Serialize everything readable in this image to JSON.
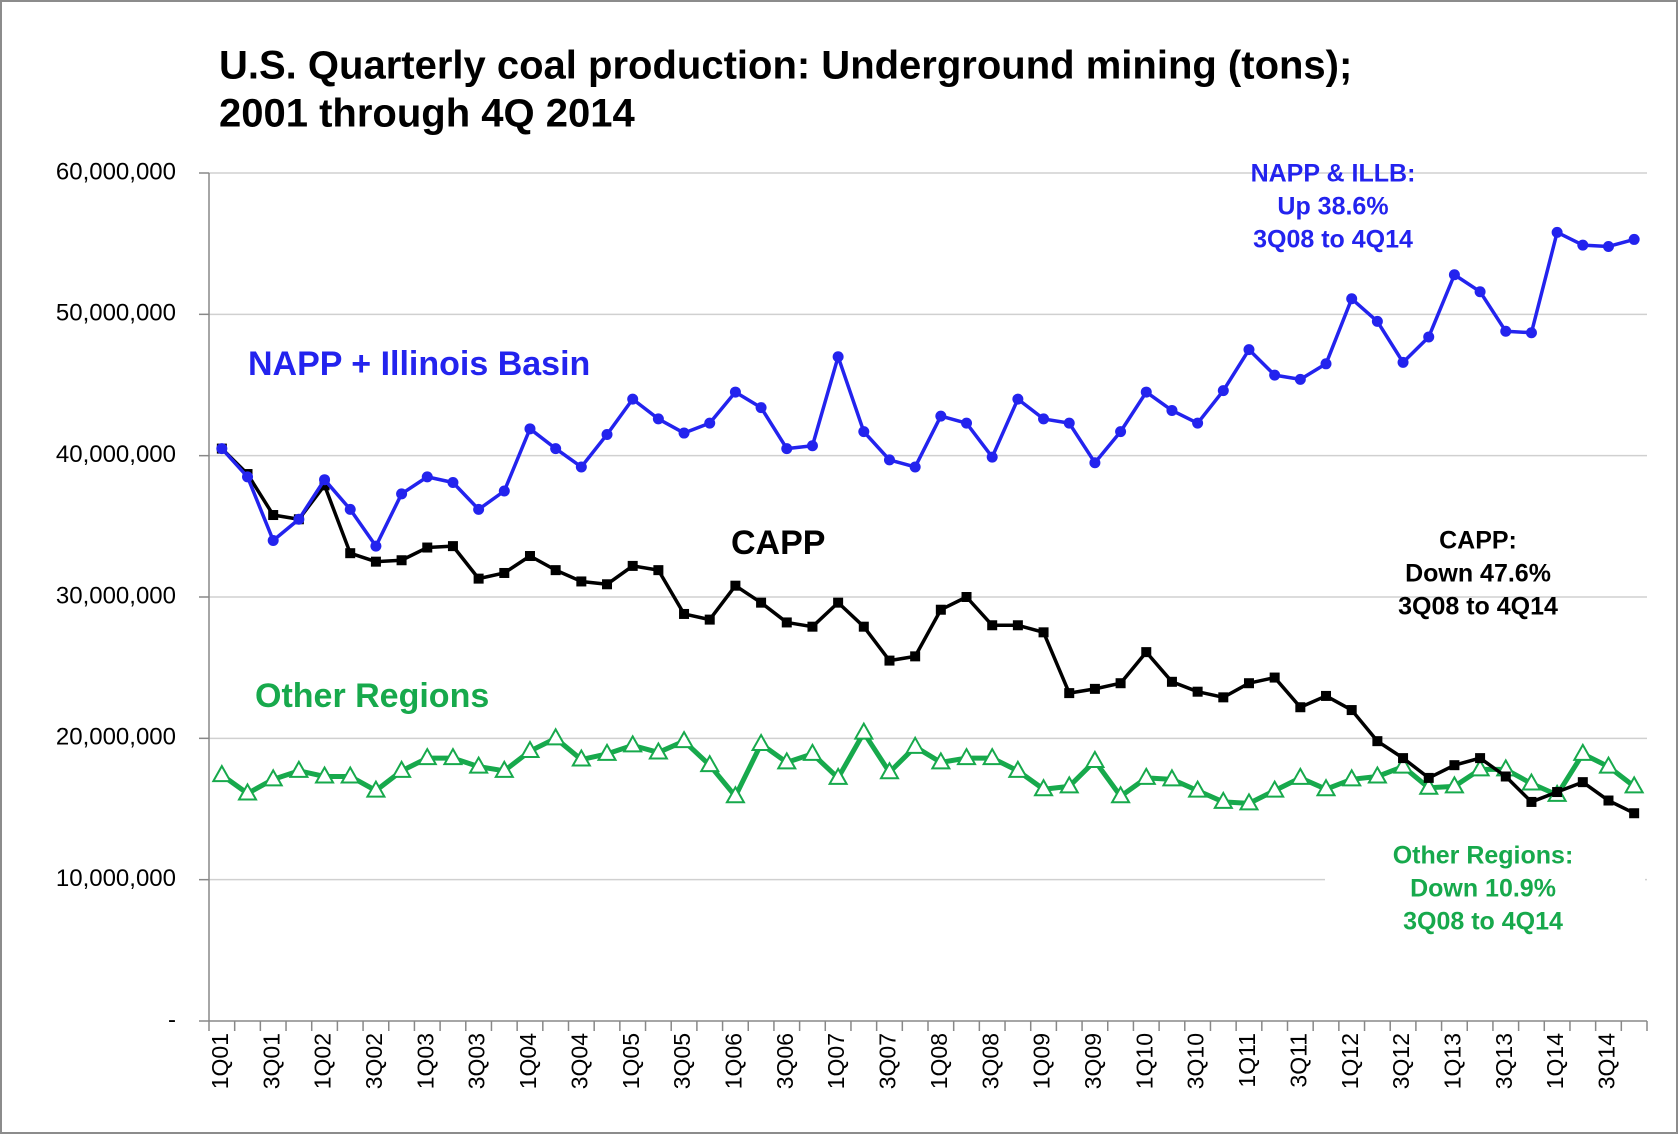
{
  "chart_data": {
    "type": "line",
    "title": [
      "U.S. Quarterly coal production: Underground mining (tons);",
      "2001 through 4Q 2014"
    ],
    "categories": [
      "1Q01",
      null,
      "3Q01",
      null,
      "1Q02",
      null,
      "3Q02",
      null,
      "1Q03",
      null,
      "3Q03",
      null,
      "1Q04",
      null,
      "3Q04",
      null,
      "1Q05",
      null,
      "3Q05",
      null,
      "1Q06",
      null,
      "3Q06",
      null,
      "1Q07",
      null,
      "3Q07",
      null,
      "1Q08",
      null,
      "3Q08",
      null,
      "1Q09",
      null,
      "3Q09",
      null,
      "1Q10",
      null,
      "3Q10",
      null,
      "1Q11",
      null,
      "3Q11",
      null,
      "1Q12",
      null,
      "3Q12",
      null,
      "1Q13",
      null,
      "3Q13",
      null,
      "1Q14",
      null,
      "3Q14",
      null
    ],
    "series": [
      {
        "name": "NAPP + Illinois Basin",
        "color": "#2323ee",
        "marker": "circle",
        "values": [
          40500000,
          38500000,
          34000000,
          35500000,
          38300000,
          36200000,
          33600000,
          37300000,
          38500000,
          38100000,
          36200000,
          37500000,
          41900000,
          40500000,
          39200000,
          41500000,
          44000000,
          42600000,
          41600000,
          42300000,
          44500000,
          43400000,
          40500000,
          40700000,
          47000000,
          41700000,
          39700000,
          39200000,
          42800000,
          42300000,
          39900000,
          44000000,
          42600000,
          42300000,
          39500000,
          41700000,
          44500000,
          43200000,
          42300000,
          44600000,
          47500000,
          45700000,
          45400000,
          46500000,
          51100000,
          49500000,
          46600000,
          48400000,
          52800000,
          51600000,
          48800000,
          48700000,
          55800000,
          54900000,
          54800000,
          55300000
        ]
      },
      {
        "name": "CAPP",
        "color": "#000000",
        "marker": "square",
        "values": [
          40500000,
          38700000,
          35800000,
          35500000,
          37900000,
          33100000,
          32500000,
          32600000,
          33500000,
          33600000,
          31300000,
          31700000,
          32900000,
          31900000,
          31100000,
          30900000,
          32200000,
          31900000,
          28800000,
          28400000,
          30800000,
          29600000,
          28200000,
          27900000,
          29600000,
          27900000,
          25500000,
          25800000,
          29100000,
          30000000,
          28000000,
          28000000,
          27500000,
          23200000,
          23500000,
          23900000,
          26100000,
          24000000,
          23300000,
          22900000,
          23900000,
          24300000,
          22200000,
          23000000,
          22000000,
          19800000,
          18600000,
          17200000,
          18100000,
          18600000,
          17300000,
          15500000,
          16200000,
          16900000,
          15600000,
          14700000
        ]
      },
      {
        "name": "Other Regions",
        "color": "#17a94c",
        "marker": "triangle",
        "values": [
          17400000,
          16100000,
          17100000,
          17700000,
          17300000,
          17300000,
          16300000,
          17700000,
          18600000,
          18600000,
          18000000,
          17700000,
          19100000,
          20000000,
          18500000,
          18900000,
          19500000,
          19000000,
          19800000,
          18100000,
          15900000,
          19600000,
          18300000,
          18900000,
          17200000,
          20400000,
          17600000,
          19400000,
          18300000,
          18600000,
          18600000,
          17700000,
          16400000,
          16600000,
          18400000,
          15900000,
          17200000,
          17100000,
          16300000,
          15500000,
          15400000,
          16300000,
          17200000,
          16400000,
          17100000,
          17300000,
          18000000,
          16500000,
          16600000,
          17800000,
          17800000,
          16800000,
          16000000,
          18900000,
          18000000,
          16600000
        ]
      }
    ],
    "annotations": [
      {
        "lines": [
          "NAPP & ILLB:",
          "Up 38.6%",
          "3Q08 to 4Q14"
        ],
        "color": "#2323ee"
      },
      {
        "lines": [
          "CAPP:",
          "Down 47.6%",
          "3Q08 to 4Q14"
        ],
        "color": "#000000"
      },
      {
        "lines": [
          "Other Regions:",
          "Down 10.9%",
          "3Q08 to 4Q14"
        ],
        "color": "#17a94c"
      }
    ],
    "ylim": [
      0,
      60000000
    ],
    "yticks": [
      {
        "value": 0,
        "label": "-"
      },
      {
        "value": 10000000,
        "label": "10,000,000"
      },
      {
        "value": 20000000,
        "label": "20,000,000"
      },
      {
        "value": 30000000,
        "label": "30,000,000"
      },
      {
        "value": 40000000,
        "label": "40,000,000"
      },
      {
        "value": 50000000,
        "label": "50,000,000"
      },
      {
        "value": 60000000,
        "label": "60,000,000"
      }
    ],
    "grid": true
  }
}
